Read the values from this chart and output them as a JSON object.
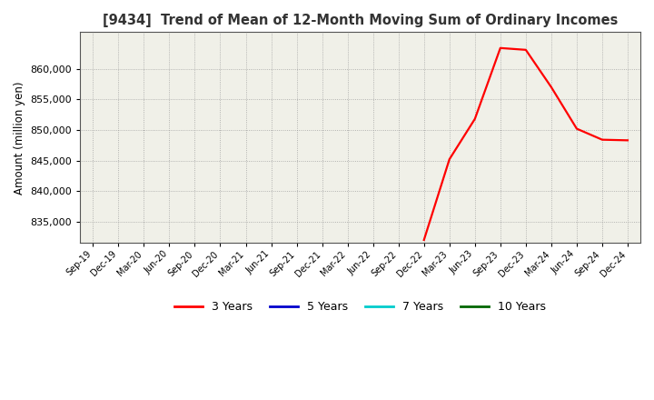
{
  "title": "[9434]  Trend of Mean of 12-Month Moving Sum of Ordinary Incomes",
  "ylabel": "Amount (million yen)",
  "ylim": [
    831500,
    866000
  ],
  "yticks": [
    835000,
    840000,
    845000,
    850000,
    855000,
    860000
  ],
  "plot_bg_color": "#f0f0e8",
  "fig_bg_color": "#ffffff",
  "grid_color": "#999999",
  "x_labels": [
    "Sep-19",
    "Dec-19",
    "Mar-20",
    "Jun-20",
    "Sep-20",
    "Dec-20",
    "Mar-21",
    "Jun-21",
    "Sep-21",
    "Dec-21",
    "Mar-22",
    "Jun-22",
    "Sep-22",
    "Dec-22",
    "Mar-23",
    "Jun-23",
    "Sep-23",
    "Dec-23",
    "Mar-24",
    "Jun-24",
    "Sep-24",
    "Dec-24"
  ],
  "series_3y": {
    "color": "#ff0000",
    "label": "3 Years",
    "data_x_indices": [
      13,
      14,
      15,
      16,
      17,
      18,
      19,
      20,
      21
    ],
    "data_y": [
      832000,
      845200,
      851800,
      863400,
      863100,
      857000,
      850200,
      848400,
      848300
    ]
  },
  "legend_entries": [
    {
      "label": "3 Years",
      "color": "#ff0000"
    },
    {
      "label": "5 Years",
      "color": "#0000cc"
    },
    {
      "label": "7 Years",
      "color": "#00cccc"
    },
    {
      "label": "10 Years",
      "color": "#006600"
    }
  ]
}
